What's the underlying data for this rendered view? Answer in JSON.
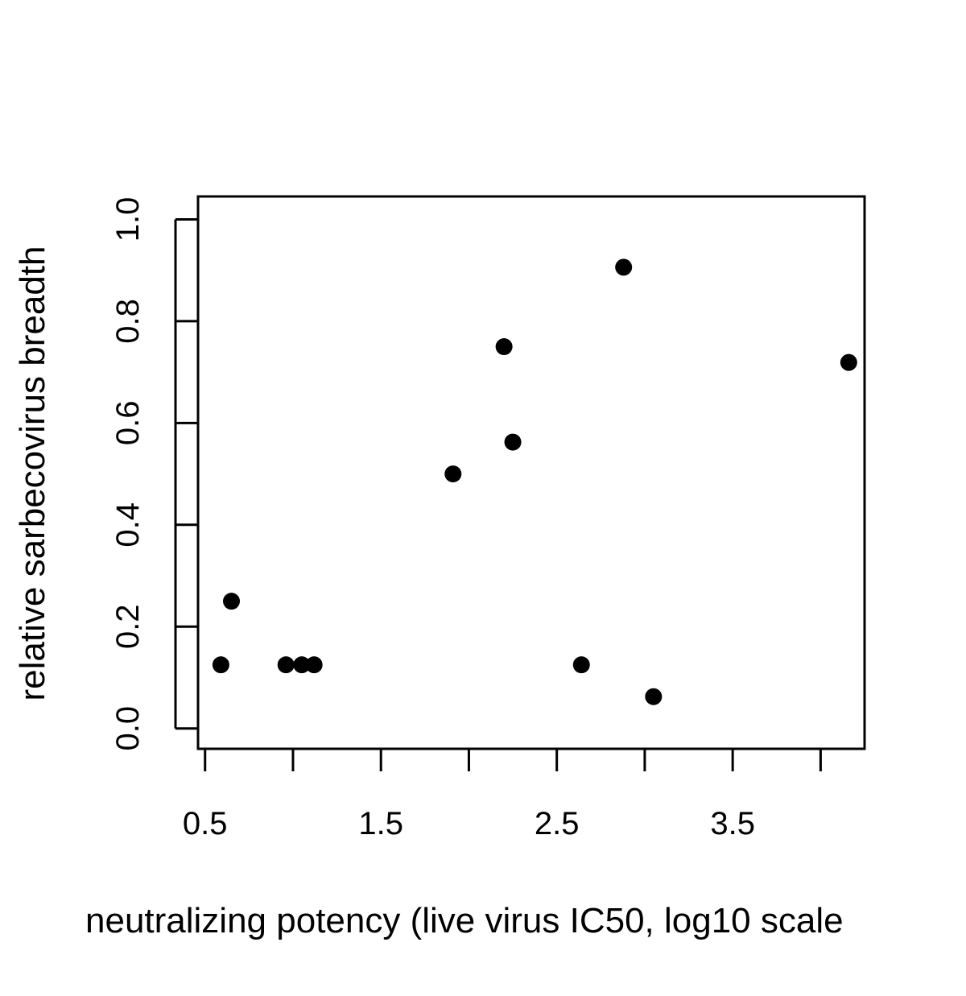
{
  "chart_data": {
    "type": "scatter",
    "title": "",
    "xlabel": "neutralizing potency (live virus IC50, log10 scale",
    "ylabel": "relative sarbecovirus breadth",
    "xlim": [
      0.46,
      4.25
    ],
    "ylim": [
      -0.04,
      1.045
    ],
    "x_ticks": [
      0.5,
      1.0,
      1.5,
      2.0,
      2.5,
      3.0,
      3.5,
      4.0
    ],
    "x_tick_labels": [
      "0.5",
      "",
      "1.5",
      "",
      "2.5",
      "",
      "3.5",
      ""
    ],
    "y_ticks": [
      0.0,
      0.2,
      0.4,
      0.6,
      0.8,
      1.0
    ],
    "y_tick_labels": [
      "0.0",
      "0.2",
      "0.4",
      "0.6",
      "0.8",
      "1.0"
    ],
    "grid": false,
    "legend": "none",
    "point_color": "#000000",
    "points": [
      {
        "x": 0.59,
        "y": 0.125
      },
      {
        "x": 0.65,
        "y": 0.25
      },
      {
        "x": 0.96,
        "y": 0.125
      },
      {
        "x": 1.05,
        "y": 0.125
      },
      {
        "x": 1.12,
        "y": 0.125
      },
      {
        "x": 1.91,
        "y": 0.5
      },
      {
        "x": 2.2,
        "y": 0.75
      },
      {
        "x": 2.25,
        "y": 0.5625
      },
      {
        "x": 2.64,
        "y": 0.125
      },
      {
        "x": 2.88,
        "y": 0.906
      },
      {
        "x": 3.05,
        "y": 0.0625
      },
      {
        "x": 4.16,
        "y": 0.719
      }
    ]
  }
}
